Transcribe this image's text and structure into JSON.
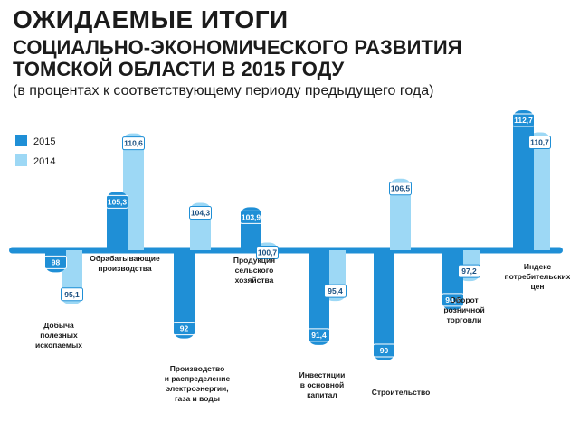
{
  "title_line1": "ОЖИДАЕМЫЕ ИТОГИ",
  "title_line2": "СОЦИАЛЬНО-ЭКОНОМИЧЕСКОГО РАЗВИТИЯ",
  "title_line3": "ТОМСКОЙ ОБЛАСТИ В 2015 ГОДУ",
  "subtitle": "(в процентах к соответствующему периоду предыдущего года)",
  "colors": {
    "series_2015": "#1f8fd6",
    "series_2014": "#9dd8f5",
    "baseline": "#1f8fd6",
    "value_light": "#1a4f80"
  },
  "chart_data": {
    "type": "bar",
    "baseline": 100,
    "legend_position": "top-left",
    "categories": [
      [
        "Добыча",
        "полезных",
        "ископаемых"
      ],
      [
        "Обрабатывающие",
        "производства"
      ],
      [
        "Производство",
        "и распределение",
        "электроэнергии,",
        "газа и воды"
      ],
      [
        "Продукция",
        "сельского",
        "хозяйства"
      ],
      [
        "Инвестиции",
        "в основной",
        "капитал"
      ],
      [
        "Строительство"
      ],
      [
        "Оборот",
        "розничной",
        "торговли"
      ],
      [
        "Индекс",
        "потребительских",
        "цен"
      ]
    ],
    "series": [
      {
        "name": "2015",
        "values": [
          98,
          105.3,
          92,
          103.9,
          91.4,
          90,
          94.6,
          112.7
        ],
        "labels": [
          "98",
          "105,3",
          "92",
          "103,9",
          "91,4",
          "90",
          "94,6",
          "112,7"
        ]
      },
      {
        "name": "2014",
        "values": [
          95.1,
          110.6,
          104.3,
          100.7,
          95.4,
          106.5,
          97.2,
          110.7
        ],
        "labels": [
          "95,1",
          "110,6",
          "104,3",
          "100,7",
          "95,4",
          "106,5",
          "97,2",
          "110,7"
        ]
      }
    ]
  }
}
